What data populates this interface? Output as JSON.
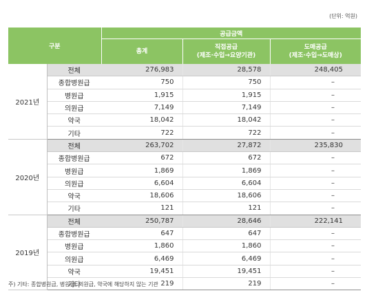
{
  "unit_note": "(단위: 억원)",
  "header": {
    "gubun": "구분",
    "supply_amount": "공급금액",
    "total": "총계",
    "direct": "직접공급",
    "direct_sub": "(제조·수입→요양기관)",
    "wholesale": "도매공급",
    "wholesale_sub": "(제조·수입→도매상)"
  },
  "years": [
    {
      "year": "2021년",
      "rows": [
        {
          "category": "전체",
          "total": "276,983",
          "direct": "28,578",
          "wholesale": "248,405"
        },
        {
          "category": "종합병원급",
          "total": "750",
          "direct": "750",
          "wholesale": "–"
        },
        {
          "category": "병원급",
          "total": "1,915",
          "direct": "1,915",
          "wholesale": "–"
        },
        {
          "category": "의원급",
          "total": "7,149",
          "direct": "7,149",
          "wholesale": "–"
        },
        {
          "category": "약국",
          "total": "18,042",
          "direct": "18,042",
          "wholesale": "–"
        },
        {
          "category": "기타",
          "total": "722",
          "direct": "722",
          "wholesale": "–"
        }
      ]
    },
    {
      "year": "2020년",
      "rows": [
        {
          "category": "전체",
          "total": "263,702",
          "direct": "27,872",
          "wholesale": "235,830"
        },
        {
          "category": "종합병원급",
          "total": "672",
          "direct": "672",
          "wholesale": "–"
        },
        {
          "category": "병원급",
          "total": "1,869",
          "direct": "1,869",
          "wholesale": "–"
        },
        {
          "category": "의원급",
          "total": "6,604",
          "direct": "6,604",
          "wholesale": "–"
        },
        {
          "category": "약국",
          "total": "18,606",
          "direct": "18,606",
          "wholesale": "–"
        },
        {
          "category": "기타",
          "total": "121",
          "direct": "121",
          "wholesale": "–"
        }
      ]
    },
    {
      "year": "2019년",
      "rows": [
        {
          "category": "전체",
          "total": "250,787",
          "direct": "28,646",
          "wholesale": "222,141"
        },
        {
          "category": "종합병원급",
          "total": "647",
          "direct": "647",
          "wholesale": "–"
        },
        {
          "category": "병원급",
          "total": "1,860",
          "direct": "1,860",
          "wholesale": "–"
        },
        {
          "category": "의원급",
          "total": "6,469",
          "direct": "6,469",
          "wholesale": "–"
        },
        {
          "category": "약국",
          "total": "19,451",
          "direct": "19,451",
          "wholesale": "–"
        },
        {
          "category": "기타",
          "total": "219",
          "direct": "219",
          "wholesale": "–"
        }
      ]
    }
  ],
  "footnote": "주) 기타: 종합병원급, 병원급, 의원급, 약국에 해당하지 않는 기관",
  "colors": {
    "header_green": "#8cc463",
    "total_row_gray": "#e0e0e0"
  }
}
